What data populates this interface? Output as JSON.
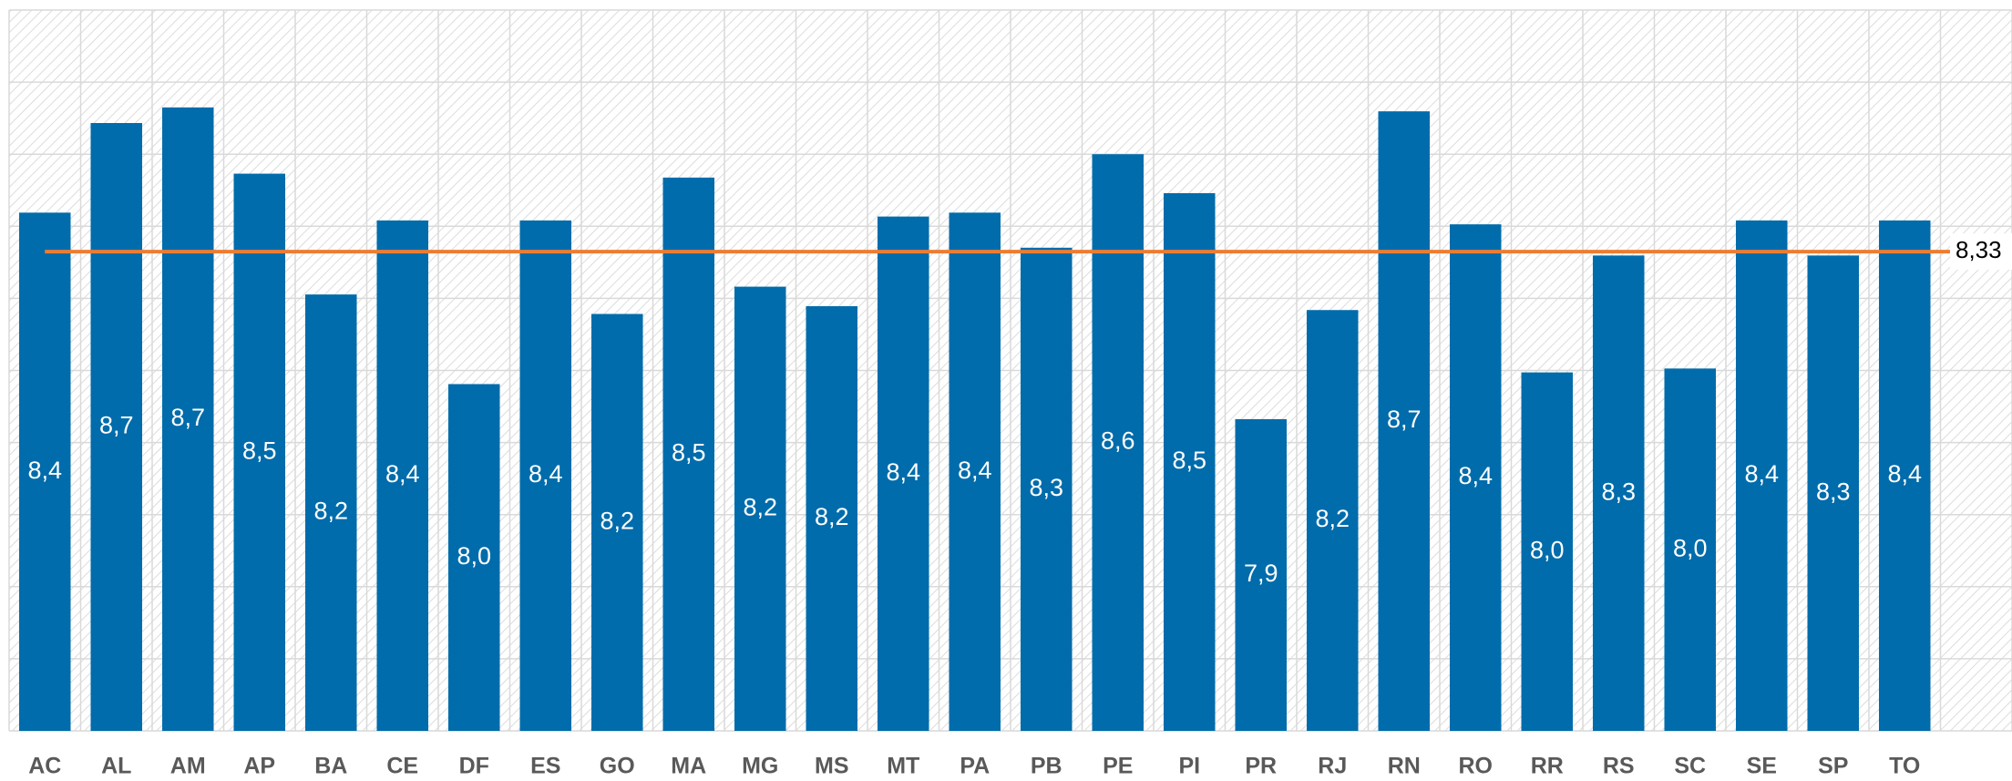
{
  "chart_data": {
    "type": "bar",
    "categories": [
      "AC",
      "AL",
      "AM",
      "AP",
      "BA",
      "CE",
      "DF",
      "ES",
      "GO",
      "MA",
      "MG",
      "MS",
      "MT",
      "PA",
      "PB",
      "PE",
      "PI",
      "PR",
      "RJ",
      "RN",
      "RO",
      "RR",
      "RS",
      "SC",
      "SE",
      "SP",
      "TO"
    ],
    "values": [
      8.43,
      8.66,
      8.7,
      8.53,
      8.22,
      8.41,
      7.99,
      8.41,
      8.17,
      8.52,
      8.24,
      8.19,
      8.42,
      8.43,
      8.34,
      8.58,
      8.48,
      7.9,
      8.18,
      8.69,
      8.4,
      8.02,
      8.32,
      8.03,
      8.41,
      8.32,
      8.41
    ],
    "value_labels": [
      "8,4",
      "8,7",
      "8,7",
      "8,5",
      "8,2",
      "8,4",
      "8,0",
      "8,4",
      "8,2",
      "8,5",
      "8,2",
      "8,2",
      "8,4",
      "8,4",
      "8,3",
      "8,6",
      "8,5",
      "7,9",
      "8,2",
      "8,7",
      "8,4",
      "8,0",
      "8,3",
      "8,0",
      "8,4",
      "8,3",
      "8,4"
    ],
    "color": "#016cab",
    "average": {
      "value": 8.33,
      "label": "8,33",
      "color": "#ed7d31"
    },
    "ylim": [
      7.1,
      8.95
    ],
    "yticks": [
      7.1,
      7.285,
      7.47,
      7.655,
      7.84,
      8.025,
      8.21,
      8.395,
      8.58,
      8.765,
      8.95
    ],
    "grid": true
  }
}
